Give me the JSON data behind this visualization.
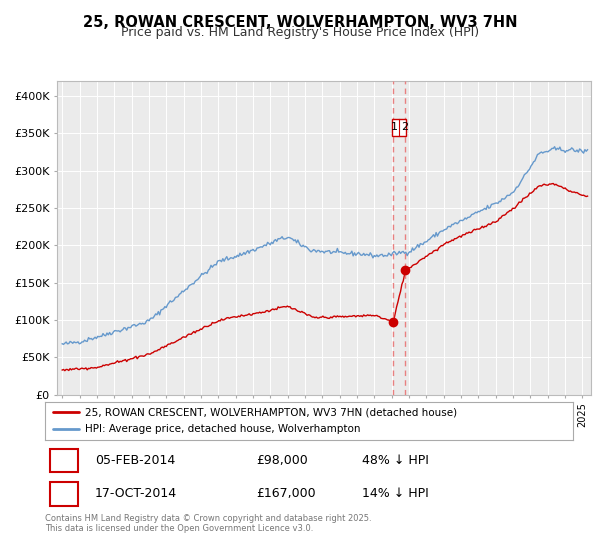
{
  "title": "25, ROWAN CRESCENT, WOLVERHAMPTON, WV3 7HN",
  "subtitle": "Price paid vs. HM Land Registry's House Price Index (HPI)",
  "legend_label_red": "25, ROWAN CRESCENT, WOLVERHAMPTON, WV3 7HN (detached house)",
  "legend_label_blue": "HPI: Average price, detached house, Wolverhampton",
  "transaction1_date": "05-FEB-2014",
  "transaction1_price": "£98,000",
  "transaction1_hpi": "48% ↓ HPI",
  "transaction2_date": "17-OCT-2014",
  "transaction2_price": "£167,000",
  "transaction2_hpi": "14% ↓ HPI",
  "footer": "Contains HM Land Registry data © Crown copyright and database right 2025.\nThis data is licensed under the Open Government Licence v3.0.",
  "ylim": [
    0,
    420000
  ],
  "yticks": [
    0,
    50000,
    100000,
    150000,
    200000,
    250000,
    300000,
    350000,
    400000
  ],
  "ytick_labels": [
    "£0",
    "£50K",
    "£100K",
    "£150K",
    "£200K",
    "£250K",
    "£300K",
    "£350K",
    "£400K"
  ],
  "color_red": "#cc0000",
  "color_blue": "#6699cc",
  "color_dashed": "#e88080",
  "background_chart": "#ebebeb",
  "background_fig": "#ffffff",
  "transaction1_x": 2014.09,
  "transaction2_x": 2014.79,
  "xmin": 1994.7,
  "xmax": 2025.5
}
